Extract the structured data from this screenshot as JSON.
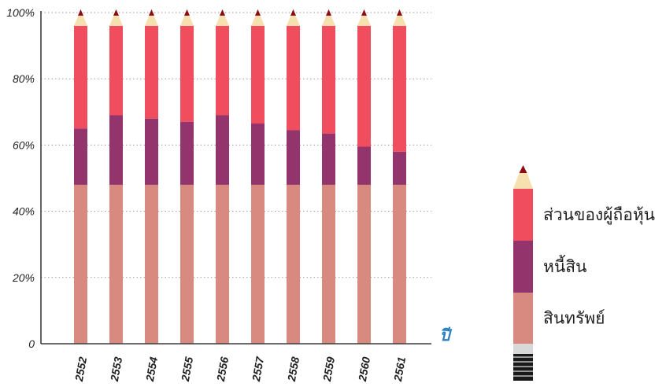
{
  "chart_data": {
    "type": "bar",
    "stacked": true,
    "xlabel": "ปี",
    "ylabel": "",
    "ylim": [
      0,
      100
    ],
    "y_ticks": [
      "0",
      "20%",
      "40%",
      "60%",
      "80%",
      "100%"
    ],
    "grid": "horizontal dotted",
    "categories": [
      "2552",
      "2553",
      "2554",
      "2555",
      "2556",
      "2557",
      "2558",
      "2559",
      "2560",
      "2561"
    ],
    "series": [
      {
        "name": "สินทรัพย์",
        "color": "#d98a80",
        "values": [
          48,
          48,
          48,
          48,
          48,
          48,
          48,
          48,
          48,
          48
        ]
      },
      {
        "name": "หนี้สิน",
        "color": "#93346c",
        "values": [
          17,
          21,
          20,
          19,
          21,
          18.5,
          16.5,
          15.5,
          11.5,
          10
        ]
      },
      {
        "name": "ส่วนของผู้ถือหุ้น",
        "color": "#f04e5f",
        "values": [
          31,
          27,
          28,
          29,
          27,
          29.5,
          31.5,
          32.5,
          36.5,
          38
        ]
      }
    ],
    "legend_position": "right",
    "legend_order": [
      "ส่วนของผู้ถือหุ้น",
      "หนี้สิน",
      "สินทรัพย์"
    ]
  },
  "colors": {
    "axis": "#3d3d3d",
    "grid": "#9a9a9a",
    "xlabel": "#2a7fc1",
    "pencil_tip": "#8b0d12",
    "pencil_wood": "#f6e0b0",
    "pencil_ferrule": "#d8d8d8",
    "pencil_band": "#1a1a1a"
  }
}
